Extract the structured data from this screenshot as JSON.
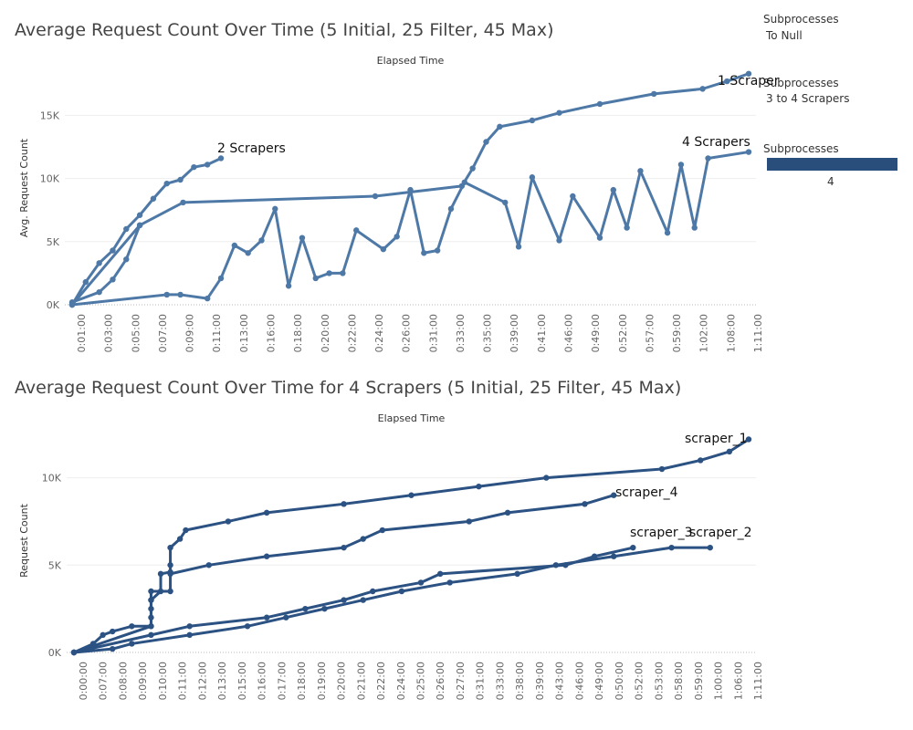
{
  "legend": {
    "sections": [
      {
        "title": "Subprocesses",
        "items": [
          "To Null"
        ]
      },
      {
        "title": "Subprocesses",
        "items": [
          "3 to 4 Scrapers"
        ]
      },
      {
        "title": "Subprocesses",
        "items": [],
        "color_bar_value": "4"
      }
    ],
    "colors": {
      "line1": "#4e79a7",
      "line2": "#2b5282",
      "bar": "#2a4e7c"
    }
  },
  "chart_data": [
    {
      "type": "line",
      "title": "Average Request Count Over Time (5 Initial, 25 Filter, 45 Max)",
      "xlabel": "Elapsed Time",
      "ylabel": "Avg. Request Count",
      "x_ticks": [
        "0:01:00",
        "0:03:00",
        "0:05:00",
        "0:07:00",
        "0:09:00",
        "0:11:00",
        "0:13:00",
        "0:16:00",
        "0:18:00",
        "0:20:00",
        "0:22:00",
        "0:24:00",
        "0:26:00",
        "0:31:00",
        "0:33:00",
        "0:35:00",
        "0:39:00",
        "0:41:00",
        "0:46:00",
        "0:49:00",
        "0:52:00",
        "0:57:00",
        "0:59:00",
        "1:02:00",
        "1:08:00",
        "1:11:00"
      ],
      "y_ticks": [
        0,
        5000,
        10000,
        15000
      ],
      "y_tick_labels": [
        "0K",
        "5K",
        "10K",
        "15K"
      ],
      "ylim": [
        0,
        18500
      ],
      "grid": true,
      "series": [
        {
          "name": "2 Scrapers",
          "points": [
            [
              0,
              0
            ],
            [
              0.5,
              1800
            ],
            [
              1,
              3300
            ],
            [
              1.5,
              4300
            ],
            [
              2,
              6000
            ],
            [
              2.5,
              7100
            ],
            [
              3,
              8400
            ],
            [
              3.5,
              9600
            ],
            [
              4,
              9900
            ],
            [
              4.5,
              10900
            ],
            [
              5,
              11100
            ],
            [
              5.5,
              11600
            ]
          ]
        },
        {
          "name": "1 Scraper",
          "points": [
            [
              0,
              0
            ],
            [
              2.5,
              6300
            ],
            [
              4.1,
              8100
            ],
            [
              11.2,
              8600
            ],
            [
              14.4,
              9400
            ],
            [
              14.8,
              10800
            ],
            [
              15.3,
              12900
            ],
            [
              15.8,
              14100
            ],
            [
              17,
              14600
            ],
            [
              18,
              15200
            ],
            [
              19.5,
              15900
            ],
            [
              21.5,
              16700
            ],
            [
              23.3,
              17100
            ],
            [
              24.2,
              17700
            ],
            [
              25,
              18300
            ]
          ]
        },
        {
          "name": "4 Scrapers",
          "points": [
            [
              0,
              200
            ],
            [
              1,
              1000
            ],
            [
              1.5,
              2000
            ],
            [
              2,
              3600
            ],
            [
              2.5,
              6300
            ]
          ]
        },
        {
          "name": "",
          "points": [
            [
              0,
              0
            ],
            [
              3.5,
              800
            ],
            [
              4,
              800
            ],
            [
              5,
              500
            ],
            [
              5.5,
              2100
            ],
            [
              6,
              4700
            ],
            [
              6.5,
              4100
            ],
            [
              7,
              5100
            ],
            [
              7.5,
              7600
            ],
            [
              8,
              1500
            ],
            [
              8.5,
              5300
            ],
            [
              9,
              2100
            ],
            [
              9.5,
              2500
            ],
            [
              10,
              2500
            ],
            [
              10.5,
              5900
            ],
            [
              11.5,
              4400
            ],
            [
              12,
              5400
            ],
            [
              12.5,
              9100
            ],
            [
              13,
              4100
            ],
            [
              13.5,
              4300
            ],
            [
              14,
              7600
            ],
            [
              14.5,
              9700
            ],
            [
              16,
              8100
            ],
            [
              16.5,
              4600
            ],
            [
              17,
              10100
            ],
            [
              18,
              5100
            ],
            [
              18.5,
              8600
            ],
            [
              19.5,
              5300
            ],
            [
              20,
              9100
            ],
            [
              20.5,
              6100
            ],
            [
              21,
              10600
            ],
            [
              22,
              5700
            ],
            [
              22.5,
              11100
            ],
            [
              23,
              6100
            ],
            [
              23.5,
              11600
            ],
            [
              25,
              12100
            ]
          ]
        }
      ],
      "annotations": [
        "2 Scrapers",
        "1 Scraper",
        "4 Scrapers"
      ]
    },
    {
      "type": "line",
      "title": "Average Request Count Over Time for 4 Scrapers (5 Initial, 25 Filter, 45 Max)",
      "xlabel": "Elapsed Time",
      "ylabel": "Request Count",
      "x_ticks": [
        "0:00:00",
        "0:07:00",
        "0:08:00",
        "0:09:00",
        "0:10:00",
        "0:11:00",
        "0:12:00",
        "0:13:00",
        "0:15:00",
        "0:16:00",
        "0:17:00",
        "0:18:00",
        "0:19:00",
        "0:20:00",
        "0:21:00",
        "0:22:00",
        "0:24:00",
        "0:25:00",
        "0:26:00",
        "0:27:00",
        "0:31:00",
        "0:33:00",
        "0:38:00",
        "0:39:00",
        "0:43:00",
        "0:46:00",
        "0:49:00",
        "0:50:00",
        "0:52:00",
        "0:53:00",
        "0:58:00",
        "0:59:00",
        "1:00:00",
        "1:06:00",
        "1:11:00"
      ],
      "y_ticks": [
        0,
        5000,
        10000
      ],
      "y_tick_labels": [
        "0K",
        "5K",
        "10K"
      ],
      "ylim": [
        0,
        12800
      ],
      "grid": true,
      "series": [
        {
          "name": "scraper_1",
          "points": [
            [
              0,
              0
            ],
            [
              1,
              500
            ],
            [
              1.5,
              1000
            ],
            [
              2,
              1200
            ],
            [
              3,
              1500
            ],
            [
              4,
              1500
            ],
            [
              4,
              3000
            ],
            [
              4.5,
              3500
            ],
            [
              4.5,
              4500
            ],
            [
              5,
              4600
            ],
            [
              5,
              5000
            ],
            [
              5,
              6000
            ],
            [
              5.5,
              6500
            ],
            [
              5.8,
              7000
            ],
            [
              8,
              7500
            ],
            [
              10,
              8000
            ],
            [
              14,
              8500
            ],
            [
              17.5,
              9000
            ],
            [
              21,
              9500
            ],
            [
              24.5,
              10000
            ],
            [
              30.5,
              10500
            ],
            [
              32.5,
              11000
            ],
            [
              34,
              11500
            ],
            [
              35,
              12200
            ]
          ]
        },
        {
          "name": "scraper_4",
          "points": [
            [
              0,
              0
            ],
            [
              4,
              1500
            ],
            [
              4,
              2000
            ],
            [
              4,
              2500
            ],
            [
              4,
              3000
            ],
            [
              4,
              3500
            ],
            [
              5,
              3500
            ],
            [
              5,
              4500
            ],
            [
              7,
              5000
            ],
            [
              10,
              5500
            ],
            [
              14,
              6000
            ],
            [
              15,
              6500
            ],
            [
              16,
              7000
            ],
            [
              20.5,
              7500
            ],
            [
              22.5,
              8000
            ],
            [
              26.5,
              8500
            ],
            [
              28,
              9000
            ]
          ]
        },
        {
          "name": "scraper_3",
          "points": [
            [
              0,
              0
            ],
            [
              4,
              1000
            ],
            [
              6,
              1500
            ],
            [
              10,
              2000
            ],
            [
              12,
              2500
            ],
            [
              14,
              3000
            ],
            [
              15.5,
              3500
            ],
            [
              18,
              4000
            ],
            [
              19,
              4500
            ],
            [
              25.5,
              5000
            ],
            [
              27,
              5500
            ],
            [
              29,
              6000
            ]
          ]
        },
        {
          "name": "scraper_2",
          "points": [
            [
              0,
              0
            ],
            [
              2,
              200
            ],
            [
              3,
              500
            ],
            [
              6,
              1000
            ],
            [
              9,
              1500
            ],
            [
              11,
              2000
            ],
            [
              13,
              2500
            ],
            [
              15,
              3000
            ],
            [
              17,
              3500
            ],
            [
              19.5,
              4000
            ],
            [
              23,
              4500
            ],
            [
              25,
              5000
            ],
            [
              28,
              5500
            ],
            [
              31,
              6000
            ],
            [
              33,
              6000
            ]
          ]
        }
      ],
      "annotations": [
        "scraper_1",
        "scraper_4",
        "scraper_3",
        "scraper_2"
      ]
    }
  ]
}
